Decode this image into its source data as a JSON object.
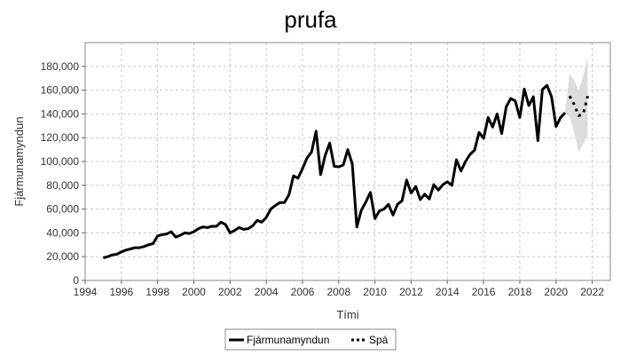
{
  "chart_data": {
    "type": "line",
    "title": "prufa",
    "xlabel": "Tími",
    "ylabel": "Fjármunamyndun",
    "xlim": [
      1994,
      2023
    ],
    "ylim": [
      0,
      200000
    ],
    "x_ticks": [
      1994,
      1996,
      1998,
      2000,
      2002,
      2004,
      2006,
      2008,
      2010,
      2012,
      2014,
      2016,
      2018,
      2020,
      2022
    ],
    "x_tick_labels": [
      "1994",
      "1996",
      "1998",
      "2000",
      "2002",
      "2004",
      "2006",
      "2008",
      "2010",
      "2012",
      "2014",
      "2016",
      "2018",
      "2020",
      "2022"
    ],
    "y_ticks": [
      0,
      20000,
      40000,
      60000,
      80000,
      100000,
      120000,
      140000,
      160000,
      180000
    ],
    "y_tick_labels": [
      "0",
      "20,000",
      "40,000",
      "60,000",
      "80,000",
      "100,000",
      "120,000",
      "140,000",
      "160,000",
      "180,000"
    ],
    "grid": true,
    "legend_position": "bottom",
    "series": [
      {
        "name": "Fjármunamyndun",
        "style": "solid",
        "color": "#000000",
        "points": [
          [
            1995.0,
            19000
          ],
          [
            1995.25,
            20000
          ],
          [
            1995.5,
            21500
          ],
          [
            1995.75,
            22000
          ],
          [
            1996.0,
            24000
          ],
          [
            1996.25,
            25500
          ],
          [
            1996.5,
            26500
          ],
          [
            1996.75,
            27500
          ],
          [
            1997.0,
            27500
          ],
          [
            1997.25,
            28500
          ],
          [
            1997.5,
            30000
          ],
          [
            1997.75,
            31000
          ],
          [
            1998.0,
            37500
          ],
          [
            1998.25,
            38500
          ],
          [
            1998.5,
            39000
          ],
          [
            1998.75,
            41000
          ],
          [
            1999.0,
            36500
          ],
          [
            1999.25,
            38000
          ],
          [
            1999.5,
            40000
          ],
          [
            1999.75,
            39500
          ],
          [
            2000.0,
            41000
          ],
          [
            2000.25,
            43500
          ],
          [
            2000.5,
            45000
          ],
          [
            2000.75,
            44500
          ],
          [
            2001.0,
            45500
          ],
          [
            2001.25,
            45500
          ],
          [
            2001.5,
            49000
          ],
          [
            2001.75,
            47000
          ],
          [
            2002.0,
            40000
          ],
          [
            2002.25,
            42000
          ],
          [
            2002.5,
            44500
          ],
          [
            2002.75,
            43000
          ],
          [
            2003.0,
            43500
          ],
          [
            2003.25,
            46000
          ],
          [
            2003.5,
            50500
          ],
          [
            2003.75,
            49000
          ],
          [
            2004.0,
            53000
          ],
          [
            2004.25,
            60000
          ],
          [
            2004.5,
            63000
          ],
          [
            2004.75,
            65500
          ],
          [
            2005.0,
            65500
          ],
          [
            2005.25,
            72000
          ],
          [
            2005.5,
            88000
          ],
          [
            2005.75,
            86000
          ],
          [
            2006.0,
            94000
          ],
          [
            2006.25,
            103000
          ],
          [
            2006.5,
            108000
          ],
          [
            2006.75,
            125500
          ],
          [
            2007.0,
            89000
          ],
          [
            2007.25,
            105000
          ],
          [
            2007.5,
            115500
          ],
          [
            2007.75,
            96000
          ],
          [
            2008.0,
            95500
          ],
          [
            2008.25,
            97000
          ],
          [
            2008.5,
            110000
          ],
          [
            2008.75,
            98000
          ],
          [
            2009.0,
            45000
          ],
          [
            2009.25,
            59000
          ],
          [
            2009.5,
            66000
          ],
          [
            2009.75,
            74000
          ],
          [
            2010.0,
            52000
          ],
          [
            2010.25,
            58500
          ],
          [
            2010.5,
            60000
          ],
          [
            2010.75,
            64000
          ],
          [
            2011.0,
            55000
          ],
          [
            2011.25,
            64000
          ],
          [
            2011.5,
            67000
          ],
          [
            2011.75,
            84500
          ],
          [
            2012.0,
            73500
          ],
          [
            2012.25,
            79000
          ],
          [
            2012.5,
            68000
          ],
          [
            2012.75,
            72500
          ],
          [
            2013.0,
            68500
          ],
          [
            2013.25,
            80500
          ],
          [
            2013.5,
            76000
          ],
          [
            2013.75,
            80500
          ],
          [
            2014.0,
            83000
          ],
          [
            2014.25,
            80000
          ],
          [
            2014.5,
            101500
          ],
          [
            2014.75,
            92000
          ],
          [
            2015.0,
            100000
          ],
          [
            2015.25,
            106000
          ],
          [
            2015.5,
            109500
          ],
          [
            2015.75,
            124500
          ],
          [
            2016.0,
            119500
          ],
          [
            2016.25,
            137000
          ],
          [
            2016.5,
            129000
          ],
          [
            2016.75,
            140000
          ],
          [
            2017.0,
            123500
          ],
          [
            2017.25,
            146000
          ],
          [
            2017.5,
            153000
          ],
          [
            2017.75,
            151000
          ],
          [
            2018.0,
            137000
          ],
          [
            2018.25,
            161000
          ],
          [
            2018.5,
            147000
          ],
          [
            2018.75,
            154500
          ],
          [
            2019.0,
            117500
          ],
          [
            2019.25,
            160500
          ],
          [
            2019.5,
            164000
          ],
          [
            2019.75,
            154500
          ],
          [
            2020.0,
            129500
          ],
          [
            2020.25,
            137000
          ],
          [
            2020.5,
            141000
          ]
        ]
      },
      {
        "name": "Spá",
        "style": "dotted",
        "color": "#000000",
        "points": [
          [
            2020.75,
            155000
          ],
          [
            2021.0,
            148000
          ],
          [
            2021.25,
            138500
          ],
          [
            2021.5,
            140000
          ],
          [
            2021.75,
            155000
          ]
        ]
      }
    ],
    "confidence_band": {
      "color": "#dcdcdc",
      "upper": [
        [
          2020.5,
          141000
        ],
        [
          2020.75,
          174000
        ],
        [
          2021.0,
          168000
        ],
        [
          2021.25,
          160000
        ],
        [
          2021.5,
          172000
        ],
        [
          2021.75,
          188000
        ]
      ],
      "lower": [
        [
          2020.5,
          141000
        ],
        [
          2020.75,
          138000
        ],
        [
          2021.0,
          125000
        ],
        [
          2021.25,
          108000
        ],
        [
          2021.5,
          115000
        ],
        [
          2021.75,
          122000
        ]
      ]
    }
  }
}
